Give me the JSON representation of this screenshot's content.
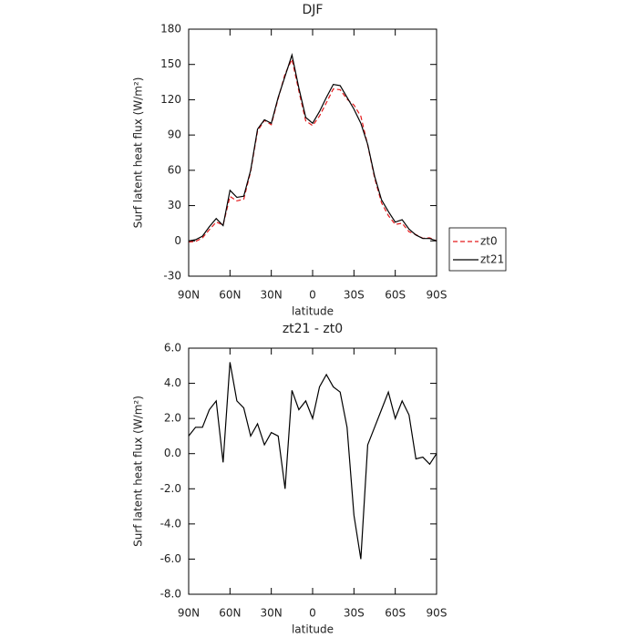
{
  "chart_data": [
    {
      "type": "line",
      "title": "DJF",
      "x_label": "latitude",
      "y_label": "Surf latent heat flux (W/m²)",
      "x": [
        90,
        85,
        80,
        75,
        70,
        65,
        60,
        55,
        50,
        45,
        40,
        35,
        30,
        25,
        20,
        15,
        10,
        5,
        0,
        -5,
        -10,
        -15,
        -20,
        -25,
        -30,
        -35,
        -40,
        -45,
        -50,
        -55,
        -60,
        -65,
        -70,
        -75,
        -80,
        -85,
        -90
      ],
      "series": [
        {
          "name": "zt0",
          "color": "#e41a1c",
          "style": "dashed",
          "values": [
            -1,
            -0.5,
            2.5,
            9.5,
            16,
            13.5,
            37.8,
            34,
            35.4,
            59,
            93.3,
            102.5,
            98.8,
            121,
            142,
            154.4,
            127.5,
            102,
            98,
            106.2,
            117.5,
            129.2,
            128.5,
            120.5,
            115.5,
            106,
            81.5,
            53.5,
            32.5,
            21.5,
            14,
            15,
            7.8,
            5.3,
            2.2,
            2.6,
            0
          ]
        },
        {
          "name": "zt21",
          "color": "#000000",
          "style": "solid",
          "values": [
            0,
            1,
            4,
            12,
            19,
            13,
            43,
            37,
            38,
            60,
            95,
            103,
            100,
            122,
            140,
            158,
            130,
            105,
            100,
            110,
            122,
            133,
            132,
            122,
            112,
            100,
            82,
            55,
            35,
            25,
            16,
            18,
            10,
            5,
            2,
            2,
            0
          ]
        }
      ],
      "xlim": [
        90,
        -90
      ],
      "xticks": [
        {
          "value": 90,
          "label": "90N"
        },
        {
          "value": 60,
          "label": "60N"
        },
        {
          "value": 30,
          "label": "30N"
        },
        0,
        {
          "value": -30,
          "label": "30S"
        },
        {
          "value": -60,
          "label": "60S"
        },
        {
          "value": -90,
          "label": "90S"
        }
      ],
      "ylim": [
        -30,
        180
      ],
      "yticks": [
        -30,
        0,
        30,
        60,
        90,
        120,
        150,
        180
      ],
      "legend": "right"
    },
    {
      "type": "line",
      "title": "zt21 - zt0",
      "x_label": "latitude",
      "y_label": "Surf latent heat flux (W/m²)",
      "x": [
        90,
        85,
        80,
        75,
        70,
        65,
        60,
        55,
        50,
        45,
        40,
        35,
        30,
        25,
        20,
        15,
        10,
        5,
        0,
        -5,
        -10,
        -15,
        -20,
        -25,
        -30,
        -35,
        -40,
        -45,
        -50,
        -55,
        -60,
        -65,
        -70,
        -75,
        -80,
        -85,
        -90
      ],
      "values": [
        1,
        1.5,
        1.5,
        2.5,
        3,
        -0.5,
        5.2,
        3,
        2.6,
        1,
        1.7,
        0.5,
        1.2,
        1,
        -2,
        3.6,
        2.5,
        3,
        2,
        3.8,
        4.5,
        3.8,
        3.5,
        1.5,
        -3.5,
        -6,
        0.5,
        1.5,
        2.5,
        3.5,
        2,
        3,
        2.2,
        -0.3,
        -0.2,
        -0.6,
        0
      ],
      "color": "#000000",
      "xlim": [
        90,
        -90
      ],
      "xticks": [
        {
          "value": 90,
          "label": "90N"
        },
        {
          "value": 60,
          "label": "60N"
        },
        {
          "value": 30,
          "label": "30N"
        },
        0,
        {
          "value": -30,
          "label": "30S"
        },
        {
          "value": -60,
          "label": "60S"
        },
        {
          "value": -90,
          "label": "90S"
        }
      ],
      "ylim": [
        -8,
        6
      ],
      "yticks": [
        {
          "value": -8,
          "label": "-8.0"
        },
        {
          "value": -6,
          "label": "-6.0"
        },
        {
          "value": -4,
          "label": "-4.0"
        },
        {
          "value": -2,
          "label": "-2.0"
        },
        {
          "value": 0,
          "label": "0.0"
        },
        {
          "value": 2,
          "label": "2.0"
        },
        {
          "value": 4,
          "label": "4.0"
        },
        {
          "value": 6,
          "label": "6.0"
        }
      ]
    }
  ]
}
